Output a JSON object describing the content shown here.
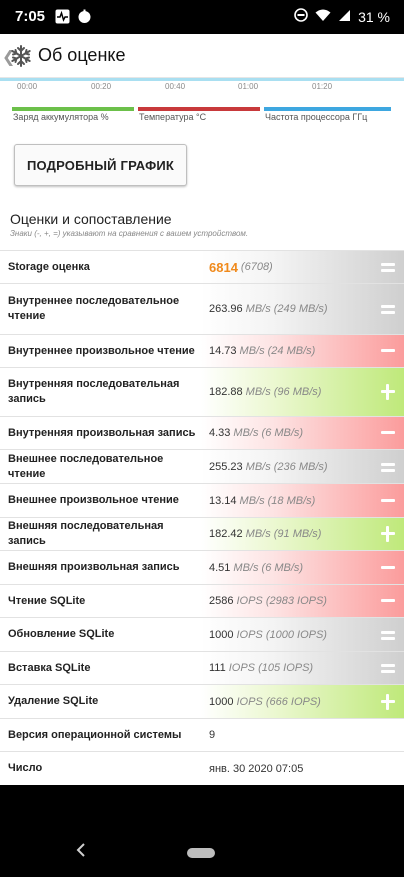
{
  "status_bar": {
    "time": "7:05",
    "battery": "31 %"
  },
  "app_bar": {
    "back_icon": "chevron-left-icon",
    "app_icon": "snowflake-icon",
    "title": "Об оценке"
  },
  "chart_axis": {
    "ticks": [
      "00:00",
      "00:20",
      "00:40",
      "01:00",
      "01:20"
    ]
  },
  "legend": [
    {
      "label": "Заряд аккумулятора %",
      "color": "#6cc04a"
    },
    {
      "label": "Температура °C",
      "color": "#c8393b"
    },
    {
      "label": "Частота процессора ГГц",
      "color": "#3ea7e0"
    }
  ],
  "detail_button": "ПОДРОБНЫЙ ГРАФИК",
  "section": {
    "title": "Оценки и сопоставление",
    "note": "Знаки (-, +, =) указывают на сравнения с вашем устройством."
  },
  "rows": [
    {
      "label": "Storage оценка",
      "value": "6814",
      "compare": "(6708)",
      "result": "equal",
      "big": true
    },
    {
      "label": "Внутреннее последовательное чтение",
      "value": "263.96",
      "compare": "MB/s (249 MB/s)",
      "result": "equal"
    },
    {
      "label": "Внутреннее произвольное чтение",
      "value": "14.73",
      "compare": "MB/s (24 MB/s)",
      "result": "worse"
    },
    {
      "label": "Внутренняя последовательная запись",
      "value": "182.88",
      "compare": "MB/s (96 MB/s)",
      "result": "better"
    },
    {
      "label": "Внутренняя произвольная запись",
      "value": "4.33",
      "compare": "MB/s (6 MB/s)",
      "result": "worse"
    },
    {
      "label": "Внешнее последовательное чтение",
      "value": "255.23",
      "compare": "MB/s (236 MB/s)",
      "result": "equal"
    },
    {
      "label": "Внешнее произвольное чтение",
      "value": "13.14",
      "compare": "MB/s (18 MB/s)",
      "result": "worse"
    },
    {
      "label": "Внешняя последовательная запись",
      "value": "182.42",
      "compare": "MB/s (91 MB/s)",
      "result": "better"
    },
    {
      "label": "Внешняя произвольная запись",
      "value": "4.51",
      "compare": "MB/s (6 MB/s)",
      "result": "worse"
    },
    {
      "label": "Чтение SQLite",
      "value": "2586",
      "compare": "IOPS (2983 IOPS)",
      "result": "worse"
    },
    {
      "label": "Обновление SQLite",
      "value": "1000",
      "compare": "IOPS (1000 IOPS)",
      "result": "equal"
    },
    {
      "label": "Вставка SQLite",
      "value": "111",
      "compare": "IOPS (105 IOPS)",
      "result": "equal"
    },
    {
      "label": "Удаление SQLite",
      "value": "1000",
      "compare": "IOPS (666 IOPS)",
      "result": "better"
    },
    {
      "label": "Версия операционной системы",
      "value": "9",
      "compare": "",
      "result": "none"
    },
    {
      "label": "Число",
      "value": "янв. 30 2020 07:05",
      "compare": "",
      "result": "none"
    }
  ],
  "nav_bar": {
    "back_icon": "nav-back-icon",
    "home_icon": "home-pill-icon"
  }
}
